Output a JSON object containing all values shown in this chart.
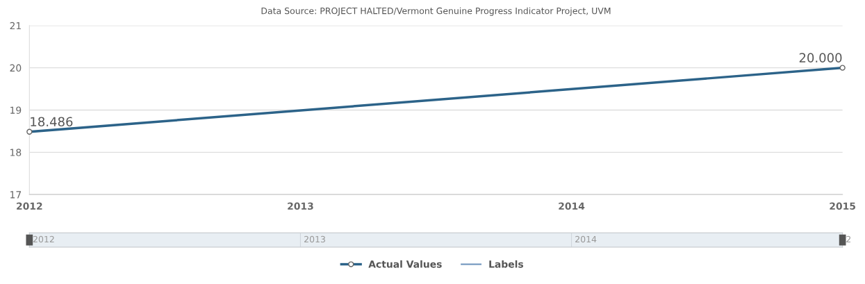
{
  "chart_data": [
    {
      "type": "line",
      "title": "Data Source: PROJECT HALTED/Vermont Genuine Progress Indicator Project, UVM",
      "x": [
        2012,
        2015
      ],
      "series": [
        {
          "name": "Actual Values",
          "color": "#2c6389",
          "values": [
            18.486,
            20.0
          ],
          "value_labels": [
            "18.486",
            "20.000"
          ],
          "marker": "circle"
        },
        {
          "name": "Labels",
          "color": "#6f95bd",
          "values": [
            null,
            null
          ],
          "marker": "none"
        }
      ],
      "xlim": [
        2012,
        2015
      ],
      "xticks": [
        2012,
        2013,
        2014,
        2015
      ],
      "ylim": [
        17,
        21
      ],
      "yticks": [
        17,
        18,
        19,
        20,
        21
      ],
      "grid": "y",
      "legend": "bottom"
    },
    {
      "type": "other",
      "annotations": [
        "2012",
        "2013",
        "2014",
        "2"
      ]
    }
  ]
}
